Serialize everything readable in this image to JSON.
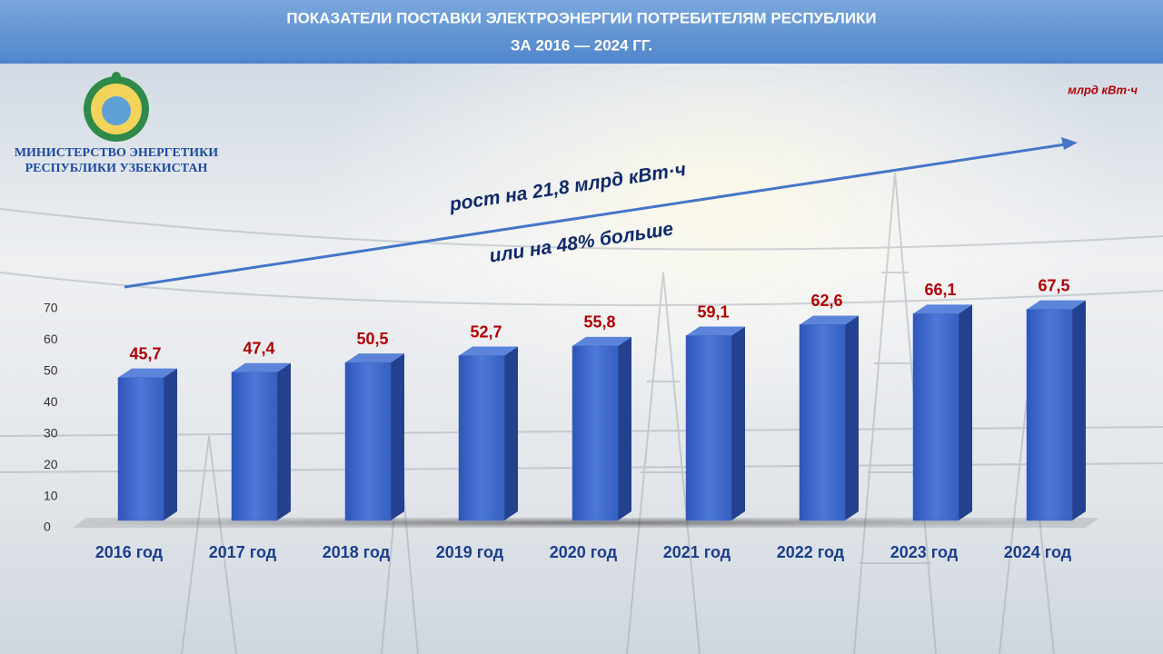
{
  "logo": {
    "lines": [
      "МИНИСТЕРСТВО ЭНЕРГЕТИКИ",
      "РЕСПУБЛИКИ УЗБЕКИСТАН"
    ]
  },
  "chart_data": {
    "type": "bar3d",
    "title": [
      "ПОКАЗАТЕЛИ ПОСТАВКИ ЭЛЕКТРОЭНЕРГИИ ПОТРЕБИТЕЛЯМ РЕСПУБЛИКИ",
      "ЗА 2016 — 2024 ГГ."
    ],
    "unit": "млрд кВт·ч",
    "annotations": [
      "рост на  21,8 млрд кВт·ч",
      "или на 48% больше"
    ],
    "categories": [
      "2016 год",
      "2017 год",
      "2018 год",
      "2019 год",
      "2020 год",
      "2021 год",
      "2022 год",
      "2023 год",
      "2024 год"
    ],
    "values": [
      45.7,
      47.4,
      50.5,
      52.7,
      55.8,
      59.1,
      62.6,
      66.1,
      67.5
    ],
    "value_labels": [
      "45,7",
      "47,4",
      "50,5",
      "52,7",
      "55,8",
      "59,1",
      "62,6",
      "66,1",
      "67,5"
    ],
    "color": "#3a62c6",
    "ylim": [
      0,
      70
    ],
    "yticks": [
      0,
      10,
      20,
      30,
      40,
      50,
      60,
      70
    ],
    "grid": false
  }
}
